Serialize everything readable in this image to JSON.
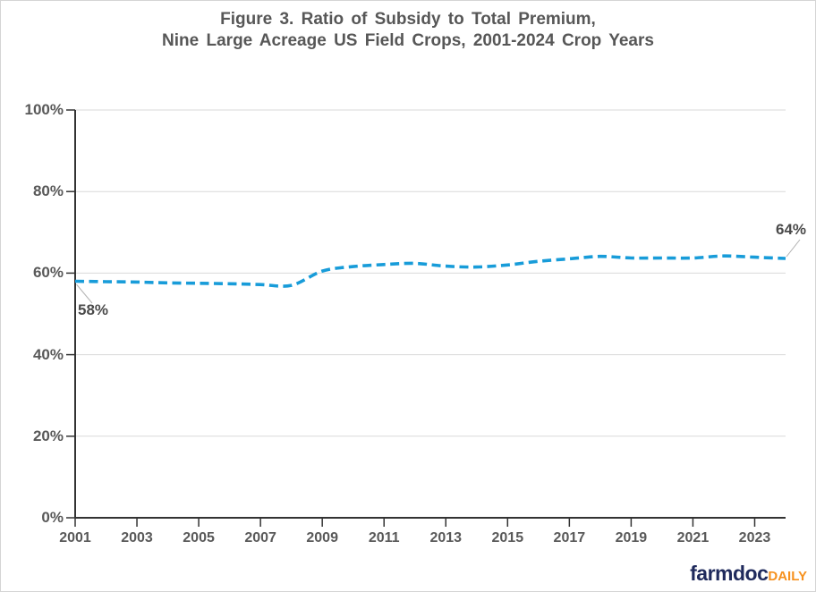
{
  "title": {
    "line1": "Figure 3. Ratio of Subsidy to Total Premium,",
    "line2": "Nine Large Acreage US Field Crops, 2001-2024 Crop Years"
  },
  "logo": {
    "brand": "farmdoc",
    "suffix": "DAILY",
    "brand_color": "#1F2A5C",
    "suffix_color": "#F6911E"
  },
  "colors": {
    "line": "#189CD9",
    "grid": "#D9D9D9",
    "axis": "#333333",
    "tick_label": "#595959",
    "annotation": "#4A4A4A",
    "leader": "#B3B3B3"
  },
  "chart_data": {
    "type": "line",
    "title": "Figure 3. Ratio of Subsidy to Total Premium, Nine Large Acreage US Field Crops, 2001-2024 Crop Years",
    "x": [
      2001,
      2002,
      2003,
      2004,
      2005,
      2006,
      2007,
      2008,
      2009,
      2010,
      2011,
      2012,
      2013,
      2014,
      2015,
      2016,
      2017,
      2018,
      2019,
      2020,
      2021,
      2022,
      2023,
      2024
    ],
    "values": [
      58.0,
      57.9,
      57.8,
      57.6,
      57.5,
      57.4,
      57.2,
      57.0,
      60.5,
      61.6,
      62.1,
      62.4,
      61.7,
      61.5,
      62.0,
      62.9,
      63.5,
      64.1,
      63.7,
      63.7,
      63.7,
      64.2,
      63.9,
      63.6
    ],
    "ylim": [
      0,
      100
    ],
    "yticks": [
      {
        "value": 0,
        "label": "0%"
      },
      {
        "value": 20,
        "label": "20%"
      },
      {
        "value": 40,
        "label": "40%"
      },
      {
        "value": 60,
        "label": "60%"
      },
      {
        "value": 80,
        "label": "80%"
      },
      {
        "value": 100,
        "label": "100%"
      }
    ],
    "xticks": [
      {
        "value": 2001,
        "label": "2001"
      },
      {
        "value": 2003,
        "label": "2003"
      },
      {
        "value": 2005,
        "label": "2005"
      },
      {
        "value": 2007,
        "label": "2007"
      },
      {
        "value": 2009,
        "label": "2009"
      },
      {
        "value": 2011,
        "label": "2011"
      },
      {
        "value": 2013,
        "label": "2013"
      },
      {
        "value": 2015,
        "label": "2015"
      },
      {
        "value": 2017,
        "label": "2017"
      },
      {
        "value": 2019,
        "label": "2019"
      },
      {
        "value": 2021,
        "label": "2021"
      },
      {
        "value": 2023,
        "label": "2023"
      }
    ],
    "line_style": "dashed",
    "smoothed": true,
    "grid": true,
    "legend": "none",
    "annotations": [
      {
        "text": "58%",
        "x": 2001,
        "y": 58
      },
      {
        "text": "64%",
        "x": 2024,
        "y": 64
      }
    ]
  }
}
